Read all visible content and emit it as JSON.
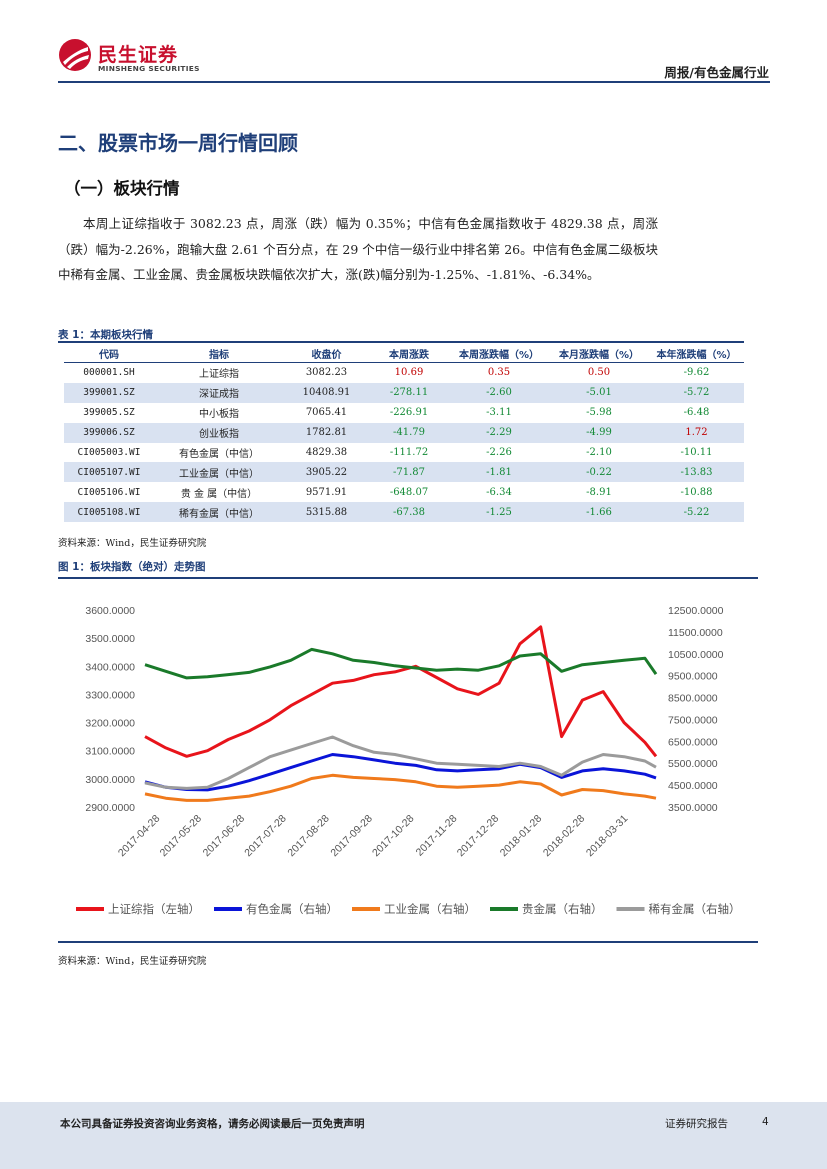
{
  "header": {
    "logo_cn": "民生证券",
    "logo_en": "MINSHENG SECURITIES",
    "report_type": "周报/有色金属行业",
    "brand_color": "#c8102e",
    "accent_color": "#1f3f79"
  },
  "section": {
    "title": "二、股票市场一周行情回顾",
    "subtitle": "（一）板块行情",
    "paragraph": "本周上证综指收于 3082.23 点，周涨（跌）幅为 0.35%；中信有色金属指数收于 4829.38 点，周涨（跌）幅为-2.26%，跑输大盘 2.61 个百分点，在 29 个中信一级行业中排名第 26。中信有色金属二级板块中稀有金属、工业金属、贵金属板块跌幅依次扩大，涨(跌)幅分别为-1.25%、-1.81%、-6.34%。"
  },
  "table": {
    "caption": "表 1：本期板块行情",
    "headers": [
      "代码",
      "指标",
      "收盘价",
      "本周涨跌",
      "本周涨跌幅（%）",
      "本月涨跌幅（%）",
      "本年涨跌幅（%）"
    ],
    "rows": [
      [
        "000001.SH",
        "上证综指",
        "3082.23",
        "10.69",
        "0.35",
        "0.50",
        "-9.62"
      ],
      [
        "399001.SZ",
        "深证成指",
        "10408.91",
        "-278.11",
        "-2.60",
        "-5.01",
        "-5.72"
      ],
      [
        "399005.SZ",
        "中小板指",
        "7065.41",
        "-226.91",
        "-3.11",
        "-5.98",
        "-6.48"
      ],
      [
        "399006.SZ",
        "创业板指",
        "1782.81",
        "-41.79",
        "-2.29",
        "-4.99",
        "1.72"
      ],
      [
        "CI005003.WI",
        "有色金属（中信）",
        "4829.38",
        "-111.72",
        "-2.26",
        "-2.10",
        "-10.11"
      ],
      [
        "CI005107.WI",
        "工业金属（中信）",
        "3905.22",
        "-71.87",
        "-1.81",
        "-0.22",
        "-13.83"
      ],
      [
        "CI005106.WI",
        "贵 金 属（中信）",
        "9571.91",
        "-648.07",
        "-6.34",
        "-8.91",
        "-10.88"
      ],
      [
        "CI005108.WI",
        "稀有金属（中信）",
        "5315.88",
        "-67.38",
        "-1.25",
        "-1.66",
        "-5.22"
      ]
    ],
    "source": "资料来源：Wind，民生证券研究院",
    "positive_color": "#c00000",
    "negative_color": "#138a36",
    "stripe_color": "#d9e2f1"
  },
  "figure": {
    "caption": "图 1：板块指数（绝对）走势图",
    "source": "资料来源：Wind，民生证券研究院"
  },
  "chart_data": {
    "type": "line",
    "title": "",
    "x": [
      "2017-04-17",
      "2017-05-02",
      "2017-05-17",
      "2017-06-01",
      "2017-06-16",
      "2017-07-01",
      "2017-07-16",
      "2017-07-31",
      "2017-08-15",
      "2017-08-30",
      "2017-09-14",
      "2017-09-29",
      "2017-10-14",
      "2017-10-29",
      "2017-11-13",
      "2017-11-28",
      "2017-12-13",
      "2017-12-28",
      "2018-01-12",
      "2018-01-27",
      "2018-02-11",
      "2018-02-26",
      "2018-03-13",
      "2018-03-28",
      "2018-04-12",
      "2018-04-20"
    ],
    "x_tick_labels": [
      "2017-04-28",
      "2017-05-28",
      "2017-06-28",
      "2017-07-28",
      "2017-08-28",
      "2017-09-28",
      "2017-10-28",
      "2017-11-28",
      "2017-12-28",
      "2018-01-28",
      "2018-02-28",
      "2018-03-31"
    ],
    "y_left": {
      "ylim": [
        2900,
        3600
      ],
      "ticks": [
        "2900.0000",
        "3000.0000",
        "3100.0000",
        "3200.0000",
        "3300.0000",
        "3400.0000",
        "3500.0000",
        "3600.0000"
      ]
    },
    "y_right": {
      "ylim": [
        3500,
        12500
      ],
      "ticks": [
        "3500.0000",
        "4500.0000",
        "5500.0000",
        "6500.0000",
        "7500.0000",
        "8500.0000",
        "9500.0000",
        "10500.0000",
        "11500.0000",
        "12500.0000"
      ]
    },
    "series": [
      {
        "name": "上证综指（左轴）",
        "axis": "left",
        "color": "#e8141b",
        "values": [
          3150,
          3110,
          3080,
          3100,
          3140,
          3170,
          3210,
          3260,
          3300,
          3340,
          3350,
          3370,
          3380,
          3400,
          3360,
          3320,
          3300,
          3340,
          3480,
          3540,
          3150,
          3280,
          3310,
          3200,
          3130,
          3080
        ]
      },
      {
        "name": "有色金属（右轴）",
        "axis": "right",
        "color": "#0a14d8",
        "values": [
          4650,
          4400,
          4300,
          4280,
          4450,
          4700,
          5000,
          5300,
          5600,
          5900,
          5800,
          5650,
          5500,
          5400,
          5200,
          5150,
          5200,
          5250,
          5450,
          5300,
          4850,
          5150,
          5250,
          5150,
          5000,
          4830
        ]
      },
      {
        "name": "工业金属（右轴）",
        "axis": "right",
        "color": "#f07a1c",
        "values": [
          4100,
          3900,
          3800,
          3800,
          3900,
          4000,
          4200,
          4450,
          4800,
          4950,
          4850,
          4800,
          4750,
          4650,
          4450,
          4400,
          4450,
          4500,
          4650,
          4550,
          4050,
          4300,
          4250,
          4100,
          4000,
          3900
        ]
      },
      {
        "name": "贵金属（右轴）",
        "axis": "right",
        "color": "#1a7a2a",
        "values": [
          10000,
          9700,
          9400,
          9450,
          9550,
          9650,
          9900,
          10200,
          10700,
          10500,
          10200,
          10100,
          9950,
          9850,
          9750,
          9800,
          9750,
          9950,
          10400,
          10500,
          9700,
          10000,
          10100,
          10200,
          10300,
          9570
        ]
      },
      {
        "name": "稀有金属（右轴）",
        "axis": "right",
        "color": "#9b9b9b",
        "values": [
          4600,
          4400,
          4350,
          4400,
          4800,
          5300,
          5800,
          6100,
          6400,
          6700,
          6300,
          6000,
          5900,
          5700,
          5500,
          5450,
          5400,
          5350,
          5500,
          5350,
          4950,
          5550,
          5900,
          5800,
          5600,
          5320
        ]
      }
    ],
    "legend": "bottom"
  },
  "footer": {
    "disclaimer": "本公司具备证券投资咨询业务资格，请务必阅读最后一页免责声明",
    "report_label": "证券研究报告",
    "page": "4"
  }
}
